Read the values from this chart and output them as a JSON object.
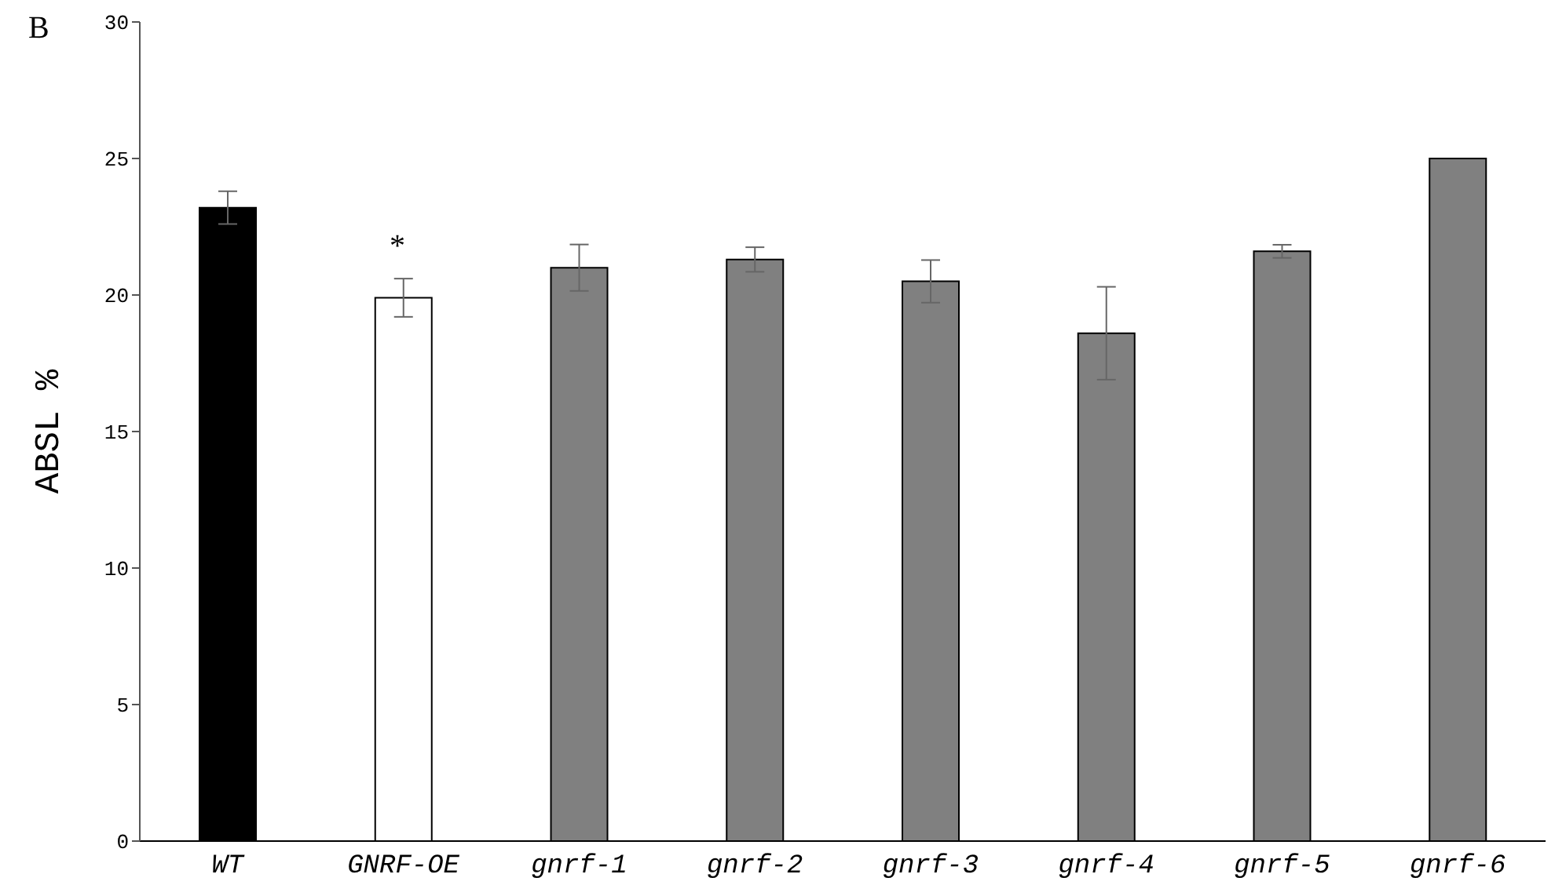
{
  "chart_data": {
    "type": "bar",
    "ylabel": "ABSL %",
    "categories": [
      "WT",
      "GNRF-OE",
      "gnrf-1",
      "gnrf-2",
      "gnrf-3",
      "gnrf-4",
      "gnrf-5",
      "gnrf-6"
    ],
    "values": [
      23.2,
      19.9,
      21.0,
      21.3,
      20.5,
      18.6,
      21.6,
      25.0
    ],
    "errors": [
      0.6,
      0.7,
      0.85,
      0.45,
      0.78,
      1.7,
      0.24,
      null
    ],
    "colors": [
      "#000000",
      "#ffffff",
      "#808080",
      "#808080",
      "#808080",
      "#808080",
      "#808080",
      "#808080"
    ],
    "ylim": [
      0,
      30
    ],
    "yticks": [
      0,
      5,
      10,
      15,
      20,
      25,
      30
    ],
    "grid": false,
    "legend": false,
    "annotations": [
      "B",
      "*"
    ]
  }
}
